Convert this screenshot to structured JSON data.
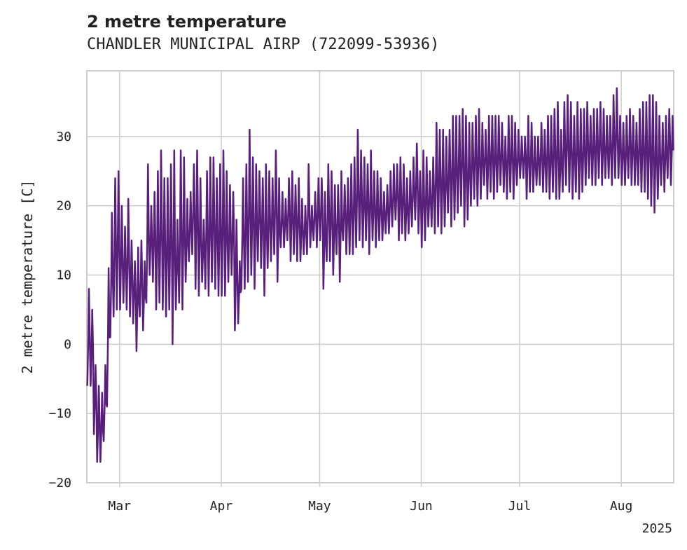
{
  "chart_data": {
    "type": "line",
    "title": "2 metre temperature",
    "subtitle": "CHANDLER MUNICIPAL AIRP (722099-53936)",
    "ylabel": "2 metre temperature [C]",
    "xlabel": "",
    "year_label": "2025",
    "ylim": [
      -20,
      39.5
    ],
    "xlim": [
      "2025-02-19",
      "2025-08-17"
    ],
    "y_ticks": [
      -20,
      -10,
      0,
      10,
      20,
      30
    ],
    "y_tick_labels": [
      "−20",
      "−10",
      "0",
      "10",
      "20",
      "30"
    ],
    "x_ticks": [
      "2025-03-01",
      "2025-04-01",
      "2025-05-01",
      "2025-06-01",
      "2025-07-01",
      "2025-08-01"
    ],
    "x_tick_labels": [
      "Mar",
      "Apr",
      "May",
      "Jun",
      "Jul",
      "Aug"
    ],
    "grid": true,
    "line_color": "#58207a",
    "series": [
      {
        "x": [
          "2025-02-19",
          "2025-02-20",
          "2025-02-21",
          "2025-02-22",
          "2025-02-23",
          "2025-02-24",
          "2025-02-25",
          "2025-02-26",
          "2025-02-27",
          "2025-02-28",
          "2025-03-01",
          "2025-03-02",
          "2025-03-03",
          "2025-03-04",
          "2025-03-05",
          "2025-03-06",
          "2025-03-07",
          "2025-03-08",
          "2025-03-09",
          "2025-03-10",
          "2025-03-11",
          "2025-03-12",
          "2025-03-13",
          "2025-03-14",
          "2025-03-15",
          "2025-03-16",
          "2025-03-17",
          "2025-03-18",
          "2025-03-19",
          "2025-03-20",
          "2025-03-21",
          "2025-03-22",
          "2025-03-23",
          "2025-03-24",
          "2025-03-25",
          "2025-03-26",
          "2025-03-27",
          "2025-03-28",
          "2025-03-29",
          "2025-03-30",
          "2025-03-31",
          "2025-04-01",
          "2025-04-02",
          "2025-04-03",
          "2025-04-04",
          "2025-04-05",
          "2025-04-06",
          "2025-04-07",
          "2025-04-08",
          "2025-04-09",
          "2025-04-10",
          "2025-04-11",
          "2025-04-12",
          "2025-04-13",
          "2025-04-14",
          "2025-04-15",
          "2025-04-16",
          "2025-04-17",
          "2025-04-18",
          "2025-04-19",
          "2025-04-20",
          "2025-04-21",
          "2025-04-22",
          "2025-04-23",
          "2025-04-24",
          "2025-04-25",
          "2025-04-26",
          "2025-04-27",
          "2025-04-28",
          "2025-04-29",
          "2025-04-30",
          "2025-05-01",
          "2025-05-02",
          "2025-05-03",
          "2025-05-04",
          "2025-05-05",
          "2025-05-06",
          "2025-05-07",
          "2025-05-08",
          "2025-05-09",
          "2025-05-10",
          "2025-05-11",
          "2025-05-12",
          "2025-05-13",
          "2025-05-14",
          "2025-05-15",
          "2025-05-16",
          "2025-05-17",
          "2025-05-18",
          "2025-05-19",
          "2025-05-20",
          "2025-05-21",
          "2025-05-22",
          "2025-05-23",
          "2025-05-24",
          "2025-05-25",
          "2025-05-26",
          "2025-05-27",
          "2025-05-28",
          "2025-05-29",
          "2025-05-30",
          "2025-05-31",
          "2025-06-01",
          "2025-06-02",
          "2025-06-03",
          "2025-06-04",
          "2025-06-05",
          "2025-06-06",
          "2025-06-07",
          "2025-06-08",
          "2025-06-09",
          "2025-06-10",
          "2025-06-11",
          "2025-06-12",
          "2025-06-13",
          "2025-06-14",
          "2025-06-15",
          "2025-06-16",
          "2025-06-17",
          "2025-06-18",
          "2025-06-19",
          "2025-06-20",
          "2025-06-21",
          "2025-06-22",
          "2025-06-23",
          "2025-06-24",
          "2025-06-25",
          "2025-06-26",
          "2025-06-27",
          "2025-06-28",
          "2025-06-29",
          "2025-06-30",
          "2025-07-01",
          "2025-07-02",
          "2025-07-03",
          "2025-07-04",
          "2025-07-05",
          "2025-07-06",
          "2025-07-07",
          "2025-07-08",
          "2025-07-09",
          "2025-07-10",
          "2025-07-11",
          "2025-07-12",
          "2025-07-13",
          "2025-07-14",
          "2025-07-15",
          "2025-07-16",
          "2025-07-17",
          "2025-07-18",
          "2025-07-19",
          "2025-07-20",
          "2025-07-21",
          "2025-07-22",
          "2025-07-23",
          "2025-07-24",
          "2025-07-25",
          "2025-07-26",
          "2025-07-27",
          "2025-07-28",
          "2025-07-29",
          "2025-07-30",
          "2025-07-31",
          "2025-08-01",
          "2025-08-02",
          "2025-08-03",
          "2025-08-04",
          "2025-08-05",
          "2025-08-06",
          "2025-08-07",
          "2025-08-08",
          "2025-08-09",
          "2025-08-10",
          "2025-08-11",
          "2025-08-12",
          "2025-08-13",
          "2025-08-14",
          "2025-08-15",
          "2025-08-16"
        ],
        "min": [
          -6,
          -6,
          -13,
          -17,
          -17,
          -14,
          -9,
          1,
          4,
          5,
          5,
          6,
          5,
          4,
          3,
          -1,
          4,
          2,
          6,
          10,
          9,
          5,
          6,
          5,
          4,
          5,
          0,
          5,
          6,
          5,
          9,
          12,
          13,
          8,
          7,
          9,
          8,
          7,
          9,
          8,
          7,
          7,
          7,
          9,
          10,
          2,
          3,
          8,
          8,
          9,
          10,
          8,
          12,
          11,
          7,
          11,
          12,
          13,
          9,
          14,
          14,
          15,
          12,
          13,
          12,
          12,
          13,
          13,
          14,
          15,
          14,
          15,
          8,
          12,
          12,
          10,
          13,
          9,
          15,
          13,
          13,
          13,
          14,
          15,
          14,
          15,
          13,
          15,
          14,
          15,
          15,
          16,
          16,
          17,
          18,
          15,
          16,
          15,
          16,
          17,
          18,
          16,
          14,
          15,
          17,
          17,
          16,
          17,
          16,
          17,
          19,
          17,
          18,
          19,
          20,
          17,
          18,
          20,
          21,
          20,
          21,
          23,
          21,
          22,
          21,
          22,
          23,
          22,
          21,
          22,
          21,
          23,
          24,
          24,
          21,
          22,
          22,
          23,
          23,
          22,
          22,
          21,
          22,
          21,
          21,
          22,
          23,
          22,
          21,
          22,
          21,
          22,
          23,
          24,
          23,
          23,
          24,
          23,
          24,
          24,
          23,
          24,
          24,
          23,
          23,
          24,
          23,
          23,
          23,
          22,
          22,
          21,
          20,
          19,
          21,
          23,
          22,
          24,
          23,
          22,
          21,
          20,
          21,
          22
        ],
        "max": [
          8,
          5,
          -3,
          -6,
          -7,
          -3,
          11,
          19,
          24,
          25,
          20,
          17,
          21,
          15,
          12,
          14,
          15,
          12,
          26,
          20,
          22,
          25,
          28,
          24,
          24,
          26,
          28,
          18,
          28,
          27,
          21,
          22,
          26,
          28,
          24,
          18,
          25,
          27,
          27,
          24,
          26,
          28,
          25,
          23,
          22,
          18,
          12,
          24,
          26,
          31,
          27,
          26,
          25,
          24,
          26,
          25,
          24,
          28,
          24,
          22,
          21,
          24,
          25,
          23,
          24,
          21,
          20,
          26,
          20,
          22,
          24,
          24,
          22,
          26,
          25,
          23,
          23,
          25,
          23,
          24,
          26,
          27,
          31,
          28,
          27,
          26,
          28,
          25,
          25,
          24,
          22,
          23,
          25,
          26,
          26,
          27,
          26,
          24,
          25,
          27,
          29,
          25,
          28,
          27,
          25,
          27,
          32,
          31,
          31,
          30,
          31,
          33,
          33,
          33,
          34,
          33,
          32,
          32,
          33,
          34,
          32,
          31,
          33,
          33,
          33,
          33,
          32,
          30,
          33,
          33,
          32,
          31,
          30,
          30,
          33,
          32,
          30,
          30,
          32,
          31,
          33,
          33,
          34,
          35,
          31,
          35,
          36,
          35,
          33,
          35,
          34,
          34,
          35,
          33,
          34,
          34,
          35,
          34,
          33,
          33,
          36,
          37,
          33,
          32,
          33,
          34,
          33,
          32,
          34,
          35,
          35,
          36,
          36,
          35,
          33,
          32,
          33,
          34,
          33
        ]
      }
    ]
  }
}
